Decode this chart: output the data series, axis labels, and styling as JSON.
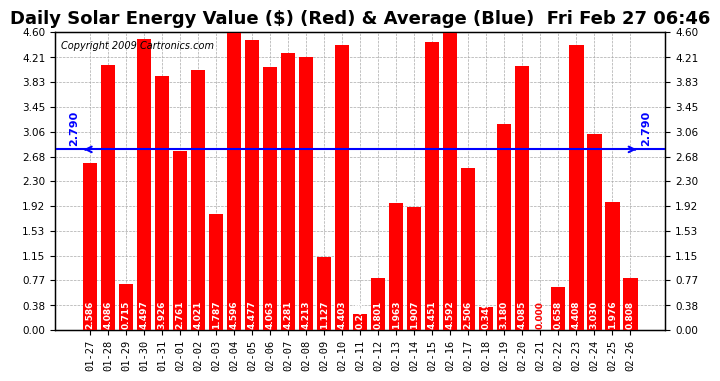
{
  "title": "Daily Solar Energy Value ($) (Red) & Average (Blue)  Fri Feb 27 06:46",
  "copyright": "Copyright 2009 Cartronics.com",
  "categories": [
    "01-27",
    "01-28",
    "01-29",
    "01-30",
    "01-31",
    "02-01",
    "02-02",
    "02-03",
    "02-04",
    "02-05",
    "02-06",
    "02-07",
    "02-08",
    "02-09",
    "02-10",
    "02-11",
    "02-12",
    "02-13",
    "02-14",
    "02-15",
    "02-16",
    "02-17",
    "02-18",
    "02-19",
    "02-20",
    "02-21",
    "02-22",
    "02-23",
    "02-24",
    "02-25",
    "02-26"
  ],
  "values": [
    2.586,
    4.086,
    0.715,
    4.497,
    3.926,
    2.761,
    4.021,
    1.787,
    4.596,
    4.477,
    4.063,
    4.281,
    4.213,
    1.127,
    4.403,
    0.243,
    0.801,
    1.963,
    1.907,
    4.451,
    4.592,
    2.506,
    0.349,
    3.18,
    4.085,
    0.0,
    0.658,
    4.408,
    3.03,
    1.976,
    0.808
  ],
  "average": 2.79,
  "bar_color": "#ff0000",
  "avg_line_color": "#0000ff",
  "background_color": "#ffffff",
  "plot_bg_color": "#ffffff",
  "grid_color": "#aaaaaa",
  "ylim": [
    0,
    4.6
  ],
  "yticks": [
    0.0,
    0.38,
    0.77,
    1.15,
    1.53,
    1.92,
    2.3,
    2.68,
    3.06,
    3.45,
    3.83,
    4.21,
    4.6
  ],
  "title_fontsize": 13,
  "tick_fontsize": 7.5,
  "bar_label_fontsize": 6.5,
  "avg_label": "2.790",
  "avg_label_fontsize": 8
}
